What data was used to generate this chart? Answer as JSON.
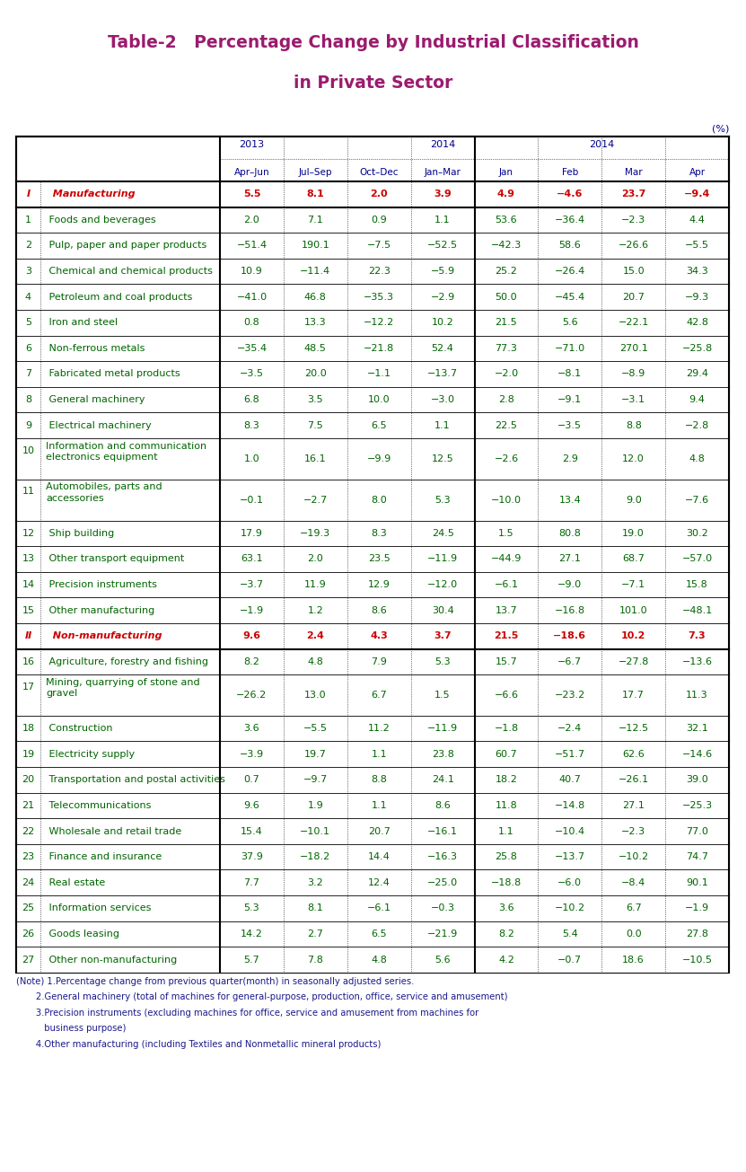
{
  "title_line1": "Table-2   Percentage Change by Industrial Classification",
  "title_line2": "in Private Sector",
  "title_color": "#9B1B6E",
  "unit_label": "(%)",
  "header_color": "#00008B",
  "rows": [
    {
      "num": "I",
      "label": "  Manufacturing",
      "values": [
        "5.5",
        "8.1",
        "2.0",
        "3.9",
        "4.9",
        "−4.6",
        "23.7",
        "−9.4"
      ],
      "lc": "#CC0000",
      "vc": "#CC0000",
      "bold": true,
      "hf": 1.0
    },
    {
      "num": "1",
      "label": " Foods and beverages",
      "values": [
        "2.0",
        "7.1",
        "0.9",
        "1.1",
        "53.6",
        "−36.4",
        "−2.3",
        "4.4"
      ],
      "lc": "#006400",
      "vc": "#006400",
      "bold": false,
      "hf": 1.0
    },
    {
      "num": "2",
      "label": " Pulp, paper and paper products",
      "values": [
        "−51.4",
        "190.1",
        "−7.5",
        "−52.5",
        "−42.3",
        "58.6",
        "−26.6",
        "−5.5"
      ],
      "lc": "#006400",
      "vc": "#006400",
      "bold": false,
      "hf": 1.0
    },
    {
      "num": "3",
      "label": " Chemical and chemical products",
      "values": [
        "10.9",
        "−11.4",
        "22.3",
        "−5.9",
        "25.2",
        "−26.4",
        "15.0",
        "34.3"
      ],
      "lc": "#006400",
      "vc": "#006400",
      "bold": false,
      "hf": 1.0
    },
    {
      "num": "4",
      "label": " Petroleum and coal products",
      "values": [
        "−41.0",
        "46.8",
        "−35.3",
        "−2.9",
        "50.0",
        "−45.4",
        "20.7",
        "−9.3"
      ],
      "lc": "#006400",
      "vc": "#006400",
      "bold": false,
      "hf": 1.0
    },
    {
      "num": "5",
      "label": " Iron and steel",
      "values": [
        "0.8",
        "13.3",
        "−12.2",
        "10.2",
        "21.5",
        "5.6",
        "−22.1",
        "42.8"
      ],
      "lc": "#006400",
      "vc": "#006400",
      "bold": false,
      "hf": 1.0
    },
    {
      "num": "6",
      "label": " Non-ferrous metals",
      "values": [
        "−35.4",
        "48.5",
        "−21.8",
        "52.4",
        "77.3",
        "−71.0",
        "270.1",
        "−25.8"
      ],
      "lc": "#006400",
      "vc": "#006400",
      "bold": false,
      "hf": 1.0
    },
    {
      "num": "7",
      "label": " Fabricated metal products",
      "values": [
        "−3.5",
        "20.0",
        "−1.1",
        "−13.7",
        "−2.0",
        "−8.1",
        "−8.9",
        "29.4"
      ],
      "lc": "#006400",
      "vc": "#006400",
      "bold": false,
      "hf": 1.0
    },
    {
      "num": "8",
      "label": " General machinery",
      "values": [
        "6.8",
        "3.5",
        "10.0",
        "−3.0",
        "2.8",
        "−9.1",
        "−3.1",
        "9.4"
      ],
      "lc": "#006400",
      "vc": "#006400",
      "bold": false,
      "hf": 1.0
    },
    {
      "num": "9",
      "label": " Electrical machinery",
      "values": [
        "8.3",
        "7.5",
        "6.5",
        "1.1",
        "22.5",
        "−3.5",
        "8.8",
        "−2.8"
      ],
      "lc": "#006400",
      "vc": "#006400",
      "bold": false,
      "hf": 1.0
    },
    {
      "num": "10",
      "label": "Information and communication\nelectronics equipment",
      "values": [
        "1.0",
        "16.1",
        "−9.9",
        "12.5",
        "−2.6",
        "2.9",
        "12.0",
        "4.8"
      ],
      "lc": "#006400",
      "vc": "#006400",
      "bold": false,
      "hf": 1.6
    },
    {
      "num": "11",
      "label": "Automobiles, parts and\naccessories",
      "values": [
        "−0.1",
        "−2.7",
        "8.0",
        "5.3",
        "−10.0",
        "13.4",
        "9.0",
        "−7.6"
      ],
      "lc": "#006400",
      "vc": "#006400",
      "bold": false,
      "hf": 1.6
    },
    {
      "num": "12",
      "label": " Ship building",
      "values": [
        "17.9",
        "−19.3",
        "8.3",
        "24.5",
        "1.5",
        "80.8",
        "19.0",
        "30.2"
      ],
      "lc": "#006400",
      "vc": "#006400",
      "bold": false,
      "hf": 1.0
    },
    {
      "num": "13",
      "label": " Other transport equipment",
      "values": [
        "63.1",
        "2.0",
        "23.5",
        "−11.9",
        "−44.9",
        "27.1",
        "68.7",
        "−57.0"
      ],
      "lc": "#006400",
      "vc": "#006400",
      "bold": false,
      "hf": 1.0
    },
    {
      "num": "14",
      "label": " Precision instruments",
      "values": [
        "−3.7",
        "11.9",
        "12.9",
        "−12.0",
        "−6.1",
        "−9.0",
        "−7.1",
        "15.8"
      ],
      "lc": "#006400",
      "vc": "#006400",
      "bold": false,
      "hf": 1.0
    },
    {
      "num": "15",
      "label": " Other manufacturing",
      "values": [
        "−1.9",
        "1.2",
        "8.6",
        "30.4",
        "13.7",
        "−16.8",
        "101.0",
        "−48.1"
      ],
      "lc": "#006400",
      "vc": "#006400",
      "bold": false,
      "hf": 1.0
    },
    {
      "num": "II",
      "label": "  Non-manufacturing",
      "values": [
        "9.6",
        "2.4",
        "4.3",
        "3.7",
        "21.5",
        "−18.6",
        "10.2",
        "7.3"
      ],
      "lc": "#CC0000",
      "vc": "#CC0000",
      "bold": true,
      "hf": 1.0
    },
    {
      "num": "16",
      "label": " Agriculture, forestry and fishing",
      "values": [
        "8.2",
        "4.8",
        "7.9",
        "5.3",
        "15.7",
        "−6.7",
        "−27.8",
        "−13.6"
      ],
      "lc": "#006400",
      "vc": "#006400",
      "bold": false,
      "hf": 1.0
    },
    {
      "num": "17",
      "label": "Mining, quarrying of stone and\ngravel",
      "values": [
        "−26.2",
        "13.0",
        "6.7",
        "1.5",
        "−6.6",
        "−23.2",
        "17.7",
        "11.3"
      ],
      "lc": "#006400",
      "vc": "#006400",
      "bold": false,
      "hf": 1.6
    },
    {
      "num": "18",
      "label": " Construction",
      "values": [
        "3.6",
        "−5.5",
        "11.2",
        "−11.9",
        "−1.8",
        "−2.4",
        "−12.5",
        "32.1"
      ],
      "lc": "#006400",
      "vc": "#006400",
      "bold": false,
      "hf": 1.0
    },
    {
      "num": "19",
      "label": " Electricity supply",
      "values": [
        "−3.9",
        "19.7",
        "1.1",
        "23.8",
        "60.7",
        "−51.7",
        "62.6",
        "−14.6"
      ],
      "lc": "#006400",
      "vc": "#006400",
      "bold": false,
      "hf": 1.0
    },
    {
      "num": "20",
      "label": " Transportation and postal activities",
      "values": [
        "0.7",
        "−9.7",
        "8.8",
        "24.1",
        "18.2",
        "40.7",
        "−26.1",
        "39.0"
      ],
      "lc": "#006400",
      "vc": "#006400",
      "bold": false,
      "hf": 1.0
    },
    {
      "num": "21",
      "label": " Telecommunications",
      "values": [
        "9.6",
        "1.9",
        "1.1",
        "8.6",
        "11.8",
        "−14.8",
        "27.1",
        "−25.3"
      ],
      "lc": "#006400",
      "vc": "#006400",
      "bold": false,
      "hf": 1.0
    },
    {
      "num": "22",
      "label": " Wholesale and retail trade",
      "values": [
        "15.4",
        "−10.1",
        "20.7",
        "−16.1",
        "1.1",
        "−10.4",
        "−2.3",
        "77.0"
      ],
      "lc": "#006400",
      "vc": "#006400",
      "bold": false,
      "hf": 1.0
    },
    {
      "num": "23",
      "label": " Finance and insurance",
      "values": [
        "37.9",
        "−18.2",
        "14.4",
        "−16.3",
        "25.8",
        "−13.7",
        "−10.2",
        "74.7"
      ],
      "lc": "#006400",
      "vc": "#006400",
      "bold": false,
      "hf": 1.0
    },
    {
      "num": "24",
      "label": " Real estate",
      "values": [
        "7.7",
        "3.2",
        "12.4",
        "−25.0",
        "−18.8",
        "−6.0",
        "−8.4",
        "90.1"
      ],
      "lc": "#006400",
      "vc": "#006400",
      "bold": false,
      "hf": 1.0
    },
    {
      "num": "25",
      "label": " Information services",
      "values": [
        "5.3",
        "8.1",
        "−6.1",
        "−0.3",
        "3.6",
        "−10.2",
        "6.7",
        "−1.9"
      ],
      "lc": "#006400",
      "vc": "#006400",
      "bold": false,
      "hf": 1.0
    },
    {
      "num": "26",
      "label": " Goods leasing",
      "values": [
        "14.2",
        "2.7",
        "6.5",
        "−21.9",
        "8.2",
        "5.4",
        "0.0",
        "27.8"
      ],
      "lc": "#006400",
      "vc": "#006400",
      "bold": false,
      "hf": 1.0
    },
    {
      "num": "27",
      "label": " Other non-manufacturing",
      "values": [
        "5.7",
        "7.8",
        "4.8",
        "5.6",
        "4.2",
        "−0.7",
        "18.6",
        "−10.5"
      ],
      "lc": "#006400",
      "vc": "#006400",
      "bold": false,
      "hf": 1.0
    }
  ],
  "notes": [
    "(Note) 1.Percentage change from previous quarter(month) in seasonally adjusted series.",
    "       2.General machinery (total of machines for general-purpose, production, office, service and amusement)",
    "       3.Precision instruments (excluding machines for office, service and amusement from machines for",
    "          business purpose)",
    "       4.Other manufacturing (including Textiles and Nonmetallic mineral products)"
  ],
  "note_color": "#1a1a8c",
  "bg_color": "#FFFFFF"
}
